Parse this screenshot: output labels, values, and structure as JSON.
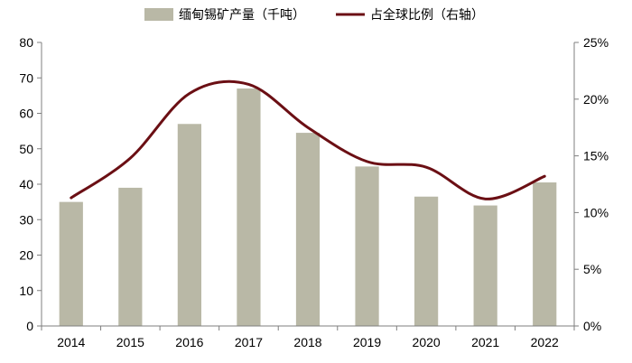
{
  "chart_data": {
    "type": "bar+line",
    "categories": [
      "2014",
      "2015",
      "2016",
      "2017",
      "2018",
      "2019",
      "2020",
      "2021",
      "2022"
    ],
    "series": [
      {
        "name": "缅甸锡矿产量（千吨）",
        "type": "bar",
        "axis": "left",
        "color": "#b9b8a6",
        "values": [
          35,
          39,
          57,
          67,
          54.5,
          45,
          36.5,
          34,
          40.5
        ]
      },
      {
        "name": "占全球比例（右轴）",
        "type": "line",
        "axis": "right",
        "smooth": true,
        "color": "#6b0f14",
        "values": [
          0.113,
          0.148,
          0.205,
          0.213,
          0.175,
          0.145,
          0.14,
          0.112,
          0.132
        ]
      }
    ],
    "y_left": {
      "min": 0,
      "max": 80,
      "step": 10,
      "tick_labels": [
        "0",
        "10",
        "20",
        "30",
        "40",
        "50",
        "60",
        "70",
        "80"
      ]
    },
    "y_right": {
      "min": 0,
      "max": 0.25,
      "step": 0.05,
      "tick_labels": [
        "0%",
        "5%",
        "10%",
        "15%",
        "20%",
        "25%"
      ]
    },
    "legend": {
      "position": "top"
    },
    "grid": false
  }
}
